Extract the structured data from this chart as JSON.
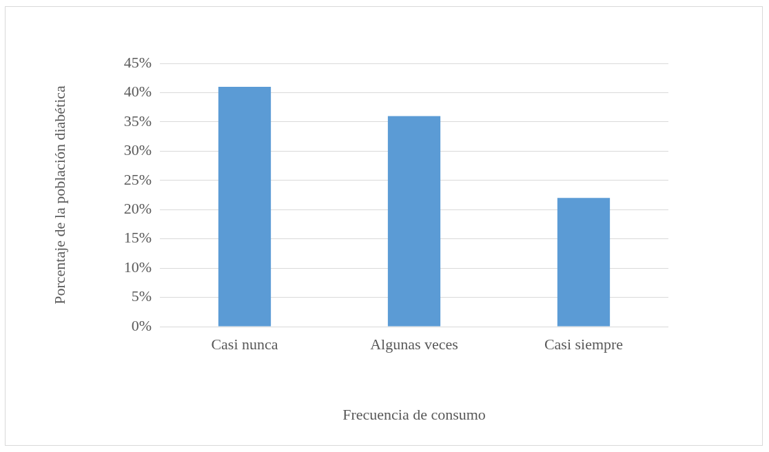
{
  "chart_data": {
    "type": "bar",
    "xlabel": "Frecuencia de consumo",
    "ylabel": "Porcentaje de la población diabética",
    "categories": [
      "Casi nunca",
      "Algunas veces",
      "Casi siempre"
    ],
    "values": [
      41,
      36,
      22
    ],
    "color": "#5b9bd5",
    "ylim": [
      0,
      45
    ],
    "yticks": [
      {
        "value": 0,
        "label": "0%"
      },
      {
        "value": 5,
        "label": "5%"
      },
      {
        "value": 10,
        "label": "10%"
      },
      {
        "value": 15,
        "label": "15%"
      },
      {
        "value": 20,
        "label": "20%"
      },
      {
        "value": 25,
        "label": "25%"
      },
      {
        "value": 30,
        "label": "30%"
      },
      {
        "value": 35,
        "label": "35%"
      },
      {
        "value": 40,
        "label": "40%"
      },
      {
        "value": 45,
        "label": "45%"
      }
    ],
    "grid": "y"
  }
}
